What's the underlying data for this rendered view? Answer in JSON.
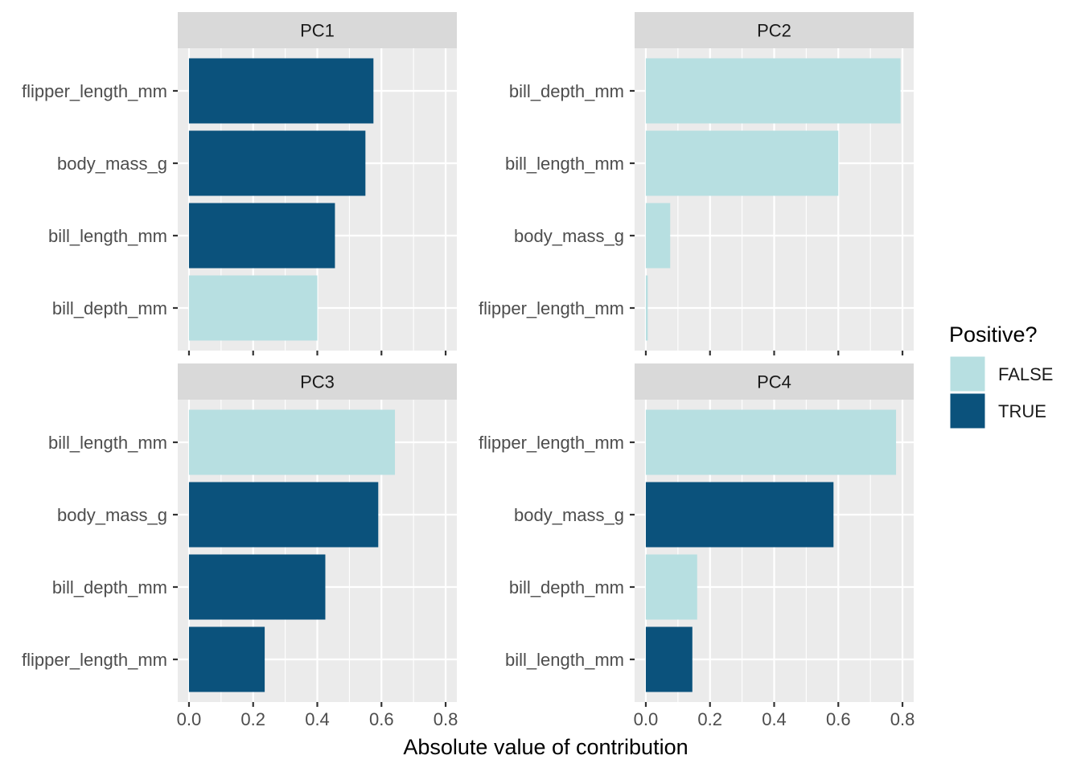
{
  "chart_data": {
    "type": "bar",
    "orientation": "horizontal",
    "facets": [
      {
        "title": "PC1",
        "bars": [
          {
            "category": "flipper_length_mm",
            "value": 0.575,
            "positive": "TRUE"
          },
          {
            "category": "body_mass_g",
            "value": 0.55,
            "positive": "TRUE"
          },
          {
            "category": "bill_length_mm",
            "value": 0.455,
            "positive": "TRUE"
          },
          {
            "category": "bill_depth_mm",
            "value": 0.4,
            "positive": "FALSE"
          }
        ]
      },
      {
        "title": "PC2",
        "bars": [
          {
            "category": "bill_depth_mm",
            "value": 0.794,
            "positive": "FALSE"
          },
          {
            "category": "bill_length_mm",
            "value": 0.6,
            "positive": "FALSE"
          },
          {
            "category": "body_mass_g",
            "value": 0.076,
            "positive": "FALSE"
          },
          {
            "category": "flipper_length_mm",
            "value": 0.006,
            "positive": "FALSE"
          }
        ]
      },
      {
        "title": "PC3",
        "bars": [
          {
            "category": "bill_length_mm",
            "value": 0.642,
            "positive": "FALSE"
          },
          {
            "category": "body_mass_g",
            "value": 0.59,
            "positive": "TRUE"
          },
          {
            "category": "bill_depth_mm",
            "value": 0.425,
            "positive": "TRUE"
          },
          {
            "category": "flipper_length_mm",
            "value": 0.236,
            "positive": "TRUE"
          }
        ]
      },
      {
        "title": "PC4",
        "bars": [
          {
            "category": "flipper_length_mm",
            "value": 0.78,
            "positive": "FALSE"
          },
          {
            "category": "body_mass_g",
            "value": 0.585,
            "positive": "TRUE"
          },
          {
            "category": "bill_depth_mm",
            "value": 0.16,
            "positive": "FALSE"
          },
          {
            "category": "bill_length_mm",
            "value": 0.145,
            "positive": "TRUE"
          }
        ]
      }
    ],
    "xlabel": "Absolute value of contribution",
    "ylabel": "",
    "xlim": [
      -0.035,
      0.835
    ],
    "x_ticks": [
      "0.0",
      "0.2",
      "0.4",
      "0.6",
      "0.8"
    ],
    "x_tick_values": [
      0,
      0.2,
      0.4,
      0.6,
      0.8
    ],
    "grid": true,
    "legend": {
      "title": "Positive?",
      "position": "right",
      "entries": [
        {
          "label": "FALSE",
          "color": "#b7dfe1"
        },
        {
          "label": "TRUE",
          "color": "#0b527c"
        }
      ]
    },
    "colors": {
      "FALSE": "#b7dfe1",
      "TRUE": "#0b527c",
      "panel_background": "#ebebeb",
      "strip_background": "#d9d9d9",
      "gridline": "#ffffff",
      "axis_text": "#4d4d4d",
      "title_text": "#000000"
    }
  }
}
